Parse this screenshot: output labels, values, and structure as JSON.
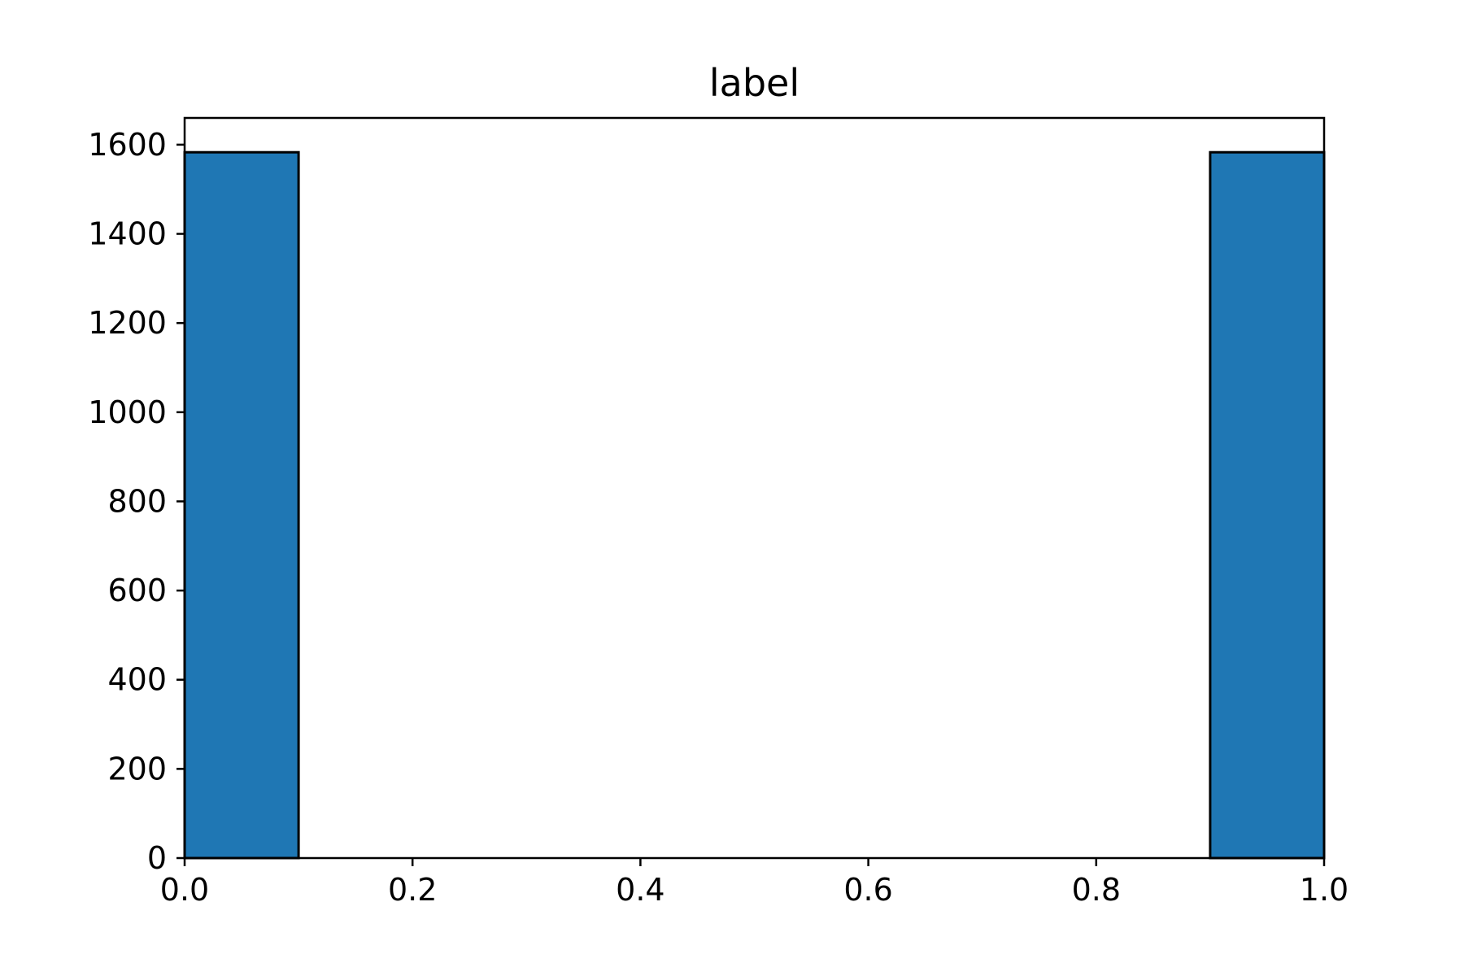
{
  "chart_data": {
    "type": "bar",
    "title": "label",
    "xlabel": "",
    "ylabel": "",
    "xlim": [
      0.0,
      1.0
    ],
    "ylim": [
      0,
      1660
    ],
    "grid": false,
    "legend": "none",
    "x_ticks": [
      "0.0",
      "0.2",
      "0.4",
      "0.6",
      "0.8",
      "1.0"
    ],
    "y_ticks": [
      "0",
      "200",
      "400",
      "600",
      "800",
      "1000",
      "1200",
      "1400",
      "1600"
    ],
    "bins": [
      {
        "x0": 0.0,
        "x1": 0.1,
        "value": 1583
      },
      {
        "x0": 0.1,
        "x1": 0.2,
        "value": 0
      },
      {
        "x0": 0.2,
        "x1": 0.3,
        "value": 0
      },
      {
        "x0": 0.3,
        "x1": 0.4,
        "value": 0
      },
      {
        "x0": 0.4,
        "x1": 0.5,
        "value": 0
      },
      {
        "x0": 0.5,
        "x1": 0.6,
        "value": 0
      },
      {
        "x0": 0.6,
        "x1": 0.7,
        "value": 0
      },
      {
        "x0": 0.7,
        "x1": 0.8,
        "value": 0
      },
      {
        "x0": 0.8,
        "x1": 0.9,
        "value": 0
      },
      {
        "x0": 0.9,
        "x1": 1.0,
        "value": 1583
      }
    ],
    "colors": {
      "bar_fill": "#1f77b4",
      "bar_edge": "#000000",
      "axis": "#000000"
    }
  }
}
